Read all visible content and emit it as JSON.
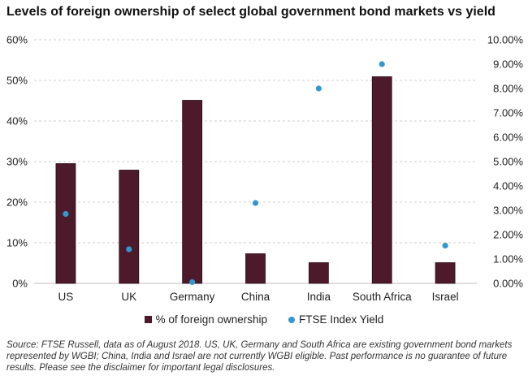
{
  "title": "Levels of foreign ownership of select global government bond markets vs yield",
  "chart_data": {
    "type": "bar",
    "categories": [
      "US",
      "UK",
      "Germany",
      "China",
      "India",
      "South Africa",
      "Israel"
    ],
    "series": [
      {
        "name": "% of foreign ownership",
        "kind": "bar",
        "axis": "left",
        "color": "#4d1a2c",
        "values": [
          29.5,
          27.9,
          45.1,
          7.3,
          5.1,
          50.9,
          5.1
        ]
      },
      {
        "name": "FTSE Index Yield",
        "kind": "scatter",
        "axis": "right",
        "color": "#3399cc",
        "values": [
          2.85,
          1.4,
          0.05,
          3.3,
          8.0,
          9.0,
          1.55
        ]
      }
    ],
    "y_left": {
      "min": 0,
      "max": 60,
      "ticks": [
        "0%",
        "10%",
        "20%",
        "30%",
        "40%",
        "50%",
        "60%"
      ]
    },
    "y_right": {
      "min": 0,
      "max": 10,
      "ticks": [
        "0.00%",
        "1.00%",
        "2.00%",
        "3.00%",
        "4.00%",
        "5.00%",
        "6.00%",
        "7.00%",
        "8.00%",
        "9.00%",
        "10.00%"
      ]
    },
    "grid": true,
    "legend_position": "bottom"
  },
  "source_text": "Source: FTSE Russell, data as of August 2018. US, UK, Germany and South Africa are existing government bond markets represented by WGBI; China, India and Israel are not currently WGBI eligible. Past performance is no guarantee of future results. Please see the disclaimer for important legal disclosures."
}
